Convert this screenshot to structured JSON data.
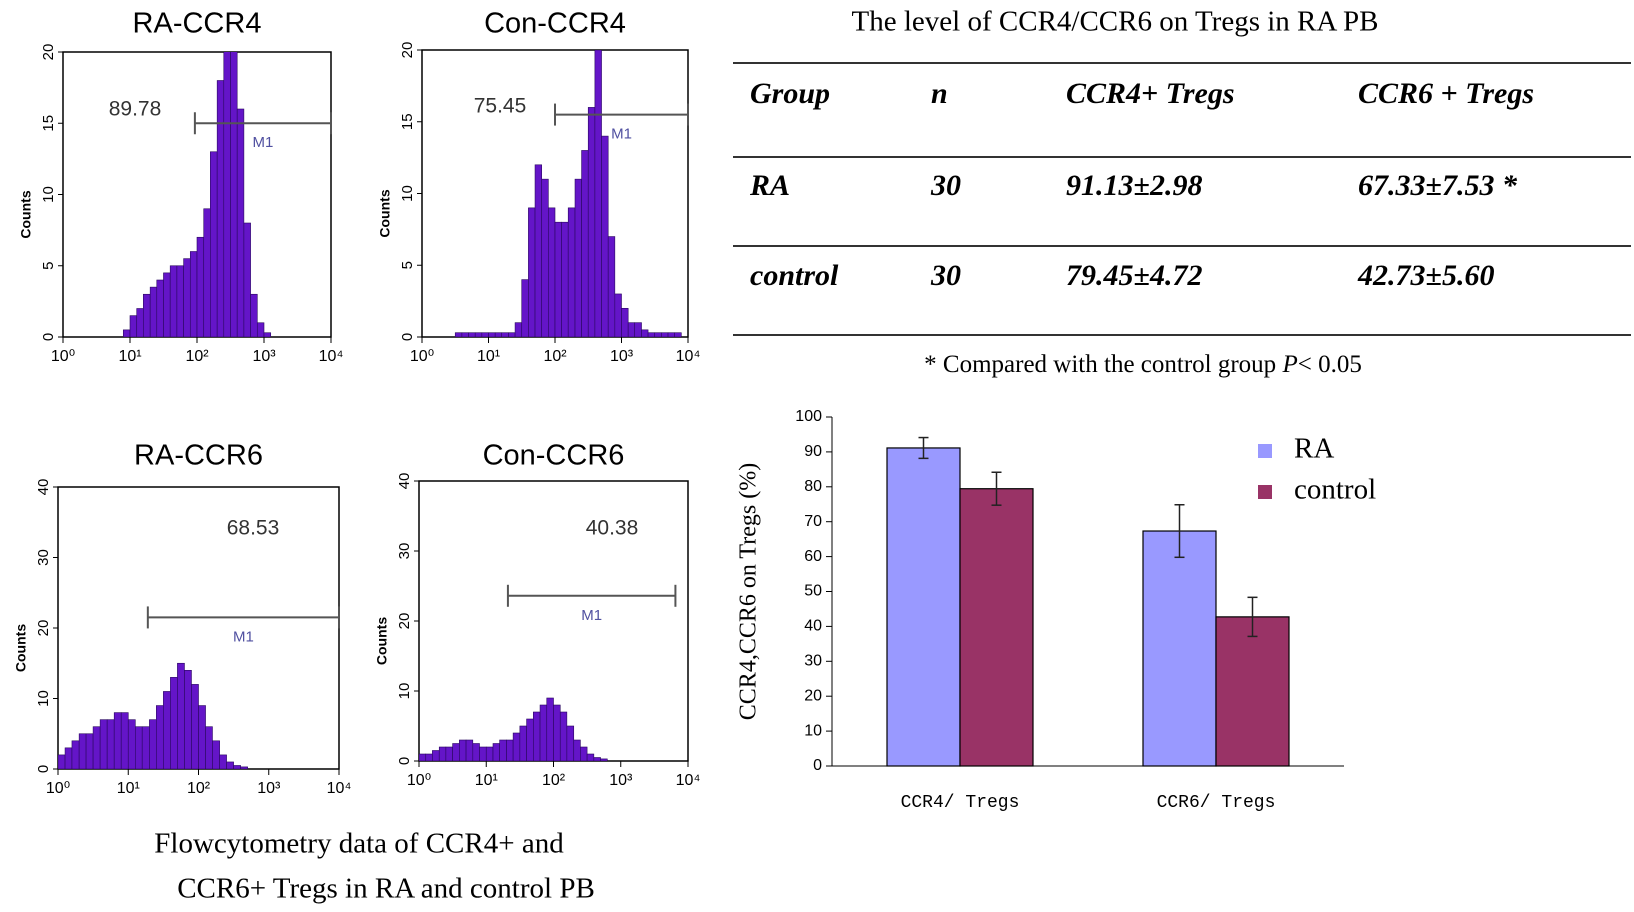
{
  "chart_data": [
    {
      "type": "histogram",
      "title": "RA-CCR4",
      "ylabel": "Counts",
      "color": "#6415c8",
      "xscale": "log",
      "xlim": [
        1,
        10000
      ],
      "xticks": [
        {
          "value": 1,
          "label": "10⁰"
        },
        {
          "value": 10,
          "label": "10¹"
        },
        {
          "value": 100,
          "label": "10²"
        },
        {
          "value": 1000,
          "label": "10³"
        },
        {
          "value": 10000,
          "label": "10⁴"
        }
      ],
      "ylim": [
        0,
        20
      ],
      "yticks": [
        0,
        5,
        10,
        15,
        20
      ],
      "bins": [
        1,
        1.26,
        1.58,
        2,
        2.51,
        3.16,
        3.98,
        5.01,
        6.31,
        7.94,
        10,
        12.6,
        15.8,
        20,
        25.1,
        31.6,
        39.8,
        50.1,
        63.1,
        79.4,
        100,
        126,
        158,
        200,
        251,
        316,
        398,
        501,
        631,
        794,
        1000,
        1260,
        1580,
        2000,
        2510,
        3160,
        3980,
        5010,
        6310,
        7940,
        10000
      ],
      "values": [
        0,
        0,
        0,
        0,
        0,
        0,
        0,
        0,
        0,
        0.5,
        1.5,
        2,
        3,
        3.5,
        4,
        4.5,
        5,
        5,
        5.5,
        6,
        7,
        9,
        13,
        18,
        22,
        22,
        16,
        8,
        3,
        1,
        0.3,
        0,
        0,
        0,
        0,
        0,
        0,
        0,
        0,
        0
      ],
      "gate": {
        "range": [
          93,
          10000
        ],
        "y": 15,
        "label": "M1"
      },
      "annotation": "89.78"
    },
    {
      "type": "histogram",
      "title": "Con-CCR4",
      "ylabel": "Counts",
      "color": "#6415c8",
      "xscale": "log",
      "xlim": [
        1,
        10000
      ],
      "xticks": [
        {
          "value": 1,
          "label": "10⁰"
        },
        {
          "value": 10,
          "label": "10¹"
        },
        {
          "value": 100,
          "label": "10²"
        },
        {
          "value": 1000,
          "label": "10³"
        },
        {
          "value": 10000,
          "label": "10⁴"
        }
      ],
      "ylim": [
        0,
        20
      ],
      "yticks": [
        0,
        5,
        10,
        15,
        20
      ],
      "bins": [
        1,
        1.26,
        1.58,
        2,
        2.51,
        3.16,
        3.98,
        5.01,
        6.31,
        7.94,
        10,
        12.6,
        15.8,
        20,
        25.1,
        31.6,
        39.8,
        50.1,
        63.1,
        79.4,
        100,
        126,
        158,
        200,
        251,
        316,
        398,
        501,
        631,
        794,
        1000,
        1260,
        1580,
        2000,
        2510,
        3160,
        3980,
        5010,
        6310,
        7940,
        10000
      ],
      "values": [
        0,
        0,
        0,
        0,
        0,
        0.3,
        0.3,
        0.3,
        0.3,
        0.3,
        0.3,
        0.3,
        0.3,
        0.3,
        1,
        4,
        9,
        12,
        11,
        9,
        8,
        8,
        9,
        11,
        13,
        16,
        20,
        14,
        7,
        3,
        2,
        1,
        1,
        0.5,
        0.3,
        0.3,
        0.3,
        0.3,
        0.3,
        0
      ],
      "gate": {
        "range": [
          100,
          10000
        ],
        "y": 15.5,
        "label": "M1"
      },
      "annotation": "75.45"
    },
    {
      "type": "histogram",
      "title": "RA-CCR6",
      "ylabel": "Counts",
      "color": "#6415c8",
      "xscale": "log",
      "xlim": [
        1,
        10000
      ],
      "xticks": [
        {
          "value": 1,
          "label": "10⁰"
        },
        {
          "value": 10,
          "label": "10¹"
        },
        {
          "value": 100,
          "label": "10²"
        },
        {
          "value": 1000,
          "label": "10³"
        },
        {
          "value": 10000,
          "label": "10⁴"
        }
      ],
      "ylim": [
        0,
        40
      ],
      "yticks": [
        0,
        10,
        20,
        30,
        40
      ],
      "bins": [
        1,
        1.26,
        1.58,
        2,
        2.51,
        3.16,
        3.98,
        5.01,
        6.31,
        7.94,
        10,
        12.6,
        15.8,
        20,
        25.1,
        31.6,
        39.8,
        50.1,
        63.1,
        79.4,
        100,
        126,
        158,
        200,
        251,
        316,
        398,
        501,
        631,
        794,
        1000,
        1260,
        1580,
        2000,
        2510,
        3160,
        3980,
        5010,
        6310,
        7940,
        10000
      ],
      "values": [
        2,
        3,
        4,
        5,
        5,
        6,
        7,
        7,
        8,
        8,
        7,
        6,
        6,
        7,
        9,
        11,
        13,
        15,
        14,
        12,
        9,
        6,
        4,
        2,
        1,
        0.5,
        0.3,
        0,
        0,
        0,
        0,
        0,
        0,
        0,
        0,
        0,
        0,
        0,
        0,
        0
      ],
      "gate": {
        "range": [
          19,
          10000
        ],
        "y": 21.5,
        "label": "M1"
      },
      "annotation": "68.53"
    },
    {
      "type": "histogram",
      "title": "Con-CCR6",
      "ylabel": "Counts",
      "color": "#6415c8",
      "xscale": "log",
      "xlim": [
        1,
        10000
      ],
      "xticks": [
        {
          "value": 1,
          "label": "10⁰"
        },
        {
          "value": 10,
          "label": "10¹"
        },
        {
          "value": 100,
          "label": "10²"
        },
        {
          "value": 1000,
          "label": "10³"
        },
        {
          "value": 10000,
          "label": "10⁴"
        }
      ],
      "ylim": [
        0,
        40
      ],
      "yticks": [
        0,
        10,
        20,
        30,
        40
      ],
      "bins": [
        1,
        1.26,
        1.58,
        2,
        2.51,
        3.16,
        3.98,
        5.01,
        6.31,
        7.94,
        10,
        12.6,
        15.8,
        20,
        25.1,
        31.6,
        39.8,
        50.1,
        63.1,
        79.4,
        100,
        126,
        158,
        200,
        251,
        316,
        398,
        501,
        631,
        794,
        1000,
        1260,
        1580,
        2000,
        2510,
        3160,
        3980,
        5010,
        6310,
        7940,
        10000
      ],
      "values": [
        1,
        1,
        1.5,
        2,
        2,
        2.5,
        3,
        3,
        2.5,
        2,
        2,
        2.5,
        3,
        3,
        4,
        5,
        6,
        7,
        8,
        9,
        8,
        7,
        5,
        3,
        2,
        1,
        0.5,
        0.3,
        0,
        0,
        0,
        0,
        0,
        0,
        0,
        0,
        0,
        0,
        0,
        0
      ],
      "gate": {
        "range": [
          21,
          6500
        ],
        "y": 23.6,
        "label": "M1"
      },
      "annotation": "40.38"
    },
    {
      "type": "bar",
      "ylabel": "CCR4,CCR6 on Tregs (%)",
      "categories": [
        "CCR4/ Tregs",
        "CCR6/ Tregs"
      ],
      "series": [
        {
          "name": "RA",
          "color": "#9999ff",
          "values": [
            91.13,
            67.33
          ],
          "errors": [
            2.98,
            7.53
          ]
        },
        {
          "name": "control",
          "color": "#993366",
          "values": [
            79.45,
            42.73
          ],
          "errors": [
            4.72,
            5.6
          ]
        }
      ],
      "ylim": [
        0,
        100
      ],
      "yticks": [
        0,
        10,
        20,
        30,
        40,
        50,
        60,
        70,
        80,
        90,
        100
      ],
      "legend": "upper right"
    }
  ],
  "table": {
    "title": "The level of CCR4/CCR6 on Tregs in RA PB",
    "header": [
      "Group",
      "n",
      "CCR4+ Tregs",
      "CCR6 + Tregs"
    ],
    "rows": [
      [
        "RA",
        "30",
        "91.13±2.98",
        "67.33±7.53 *"
      ],
      [
        "control",
        "30",
        "79.45±4.72",
        "42.73±5.60"
      ]
    ],
    "footnote": [
      "* Compared with the control group ",
      "P",
      "< 0.05"
    ]
  },
  "caption": [
    "Flowcytometry data of CCR4+ and",
    "CCR6+ Tregs in RA and control PB"
  ]
}
